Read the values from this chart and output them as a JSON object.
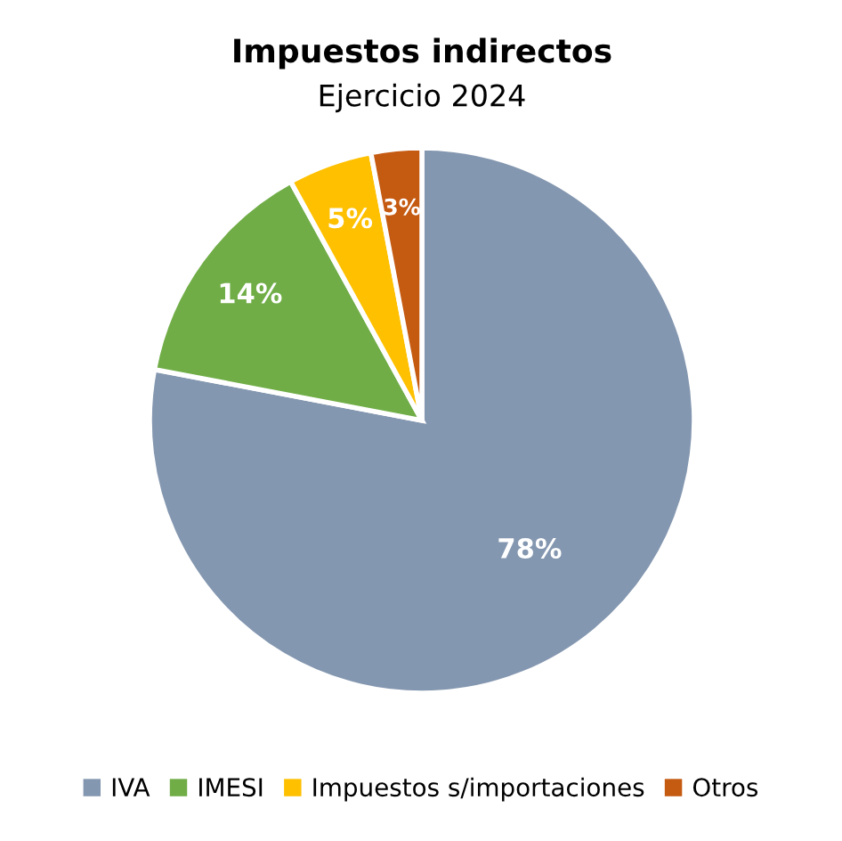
{
  "chart_data": {
    "type": "pie",
    "title": "Impuestos indirectos",
    "subtitle": "Ejercicio 2024",
    "categories": [
      "IVA",
      "IMESI",
      "Impuestos s/importaciones",
      "Otros"
    ],
    "values": [
      78,
      14,
      5,
      3
    ],
    "colors": [
      "#8497b0",
      "#70ad47",
      "#ffc000",
      "#c55a11"
    ],
    "value_labels": [
      "78%",
      "14%",
      "5%",
      "3%"
    ],
    "legend": "bottom"
  }
}
